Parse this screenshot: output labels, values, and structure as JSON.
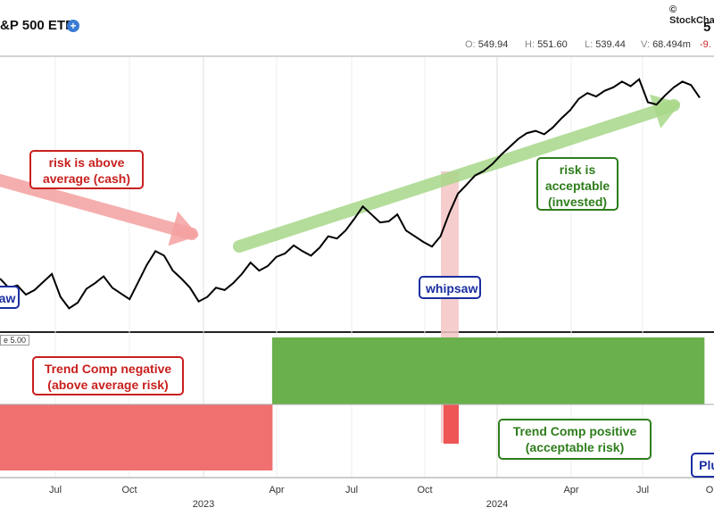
{
  "header": {
    "title": "&P 500 ETF",
    "brand": "© StockCharts.com",
    "price": "5",
    "ohlc": [
      {
        "k": "O:",
        "v": "549.94"
      },
      {
        "k": "H:",
        "v": "551.60"
      },
      {
        "k": "L:",
        "v": "539.44"
      },
      {
        "k": "V:",
        "v": "68.494m"
      }
    ],
    "change": "-9.",
    "colors": {
      "plus_badge": "#3a7bd5"
    }
  },
  "panel_tag": "e 5.00",
  "callouts": {
    "risk_above": "risk is above average (cash)",
    "risk_acceptable": "risk is acceptable (invested)",
    "whipsaw_main": "whipsaw",
    "whipsaw_left": "aw",
    "trend_negative": "Trend Comp negative (above average risk)",
    "trend_positive": "Trend Comp positive (acceptable risk)",
    "plus_tag": "Plu"
  },
  "x_axis": {
    "months": [
      "Jul",
      "Oct",
      "Apr",
      "Jul",
      "Oct",
      "Apr",
      "Jul",
      "O"
    ],
    "years": [
      "2023",
      "2024"
    ]
  },
  "chart_data": {
    "type": "line",
    "series": [
      {
        "values": [
          388,
          380,
          382,
          374,
          378,
          385,
          392,
          372,
          362,
          367,
          379,
          384,
          390,
          380,
          375,
          370,
          385,
          400,
          412,
          408,
          395,
          388,
          380,
          368,
          372,
          380,
          378,
          384,
          392,
          402,
          395,
          399,
          407,
          410,
          417,
          412,
          408,
          415,
          425,
          423,
          430,
          440,
          451,
          444,
          437,
          438,
          444,
          430,
          425,
          420,
          416,
          425,
          445,
          462,
          470,
          478,
          482,
          488,
          496,
          503,
          510,
          515,
          517,
          514,
          520,
          528,
          535,
          545,
          550,
          547,
          552,
          555,
          560,
          556,
          562,
          542,
          540,
          548,
          555,
          560,
          557,
          546
        ]
      }
    ],
    "trend_comp": [
      -1,
      -1,
      -1,
      -1,
      -1,
      -1,
      -1,
      -1,
      -1,
      -1,
      -1,
      -1,
      -1,
      -1,
      -1,
      -1,
      -1,
      -1,
      -1,
      -1,
      -1,
      -1,
      -1,
      -1,
      -1,
      -1,
      -1,
      -1,
      -1,
      -1,
      -1,
      -1,
      1,
      1,
      1,
      1,
      1,
      1,
      1,
      1,
      1,
      1,
      1,
      1,
      1,
      1,
      1,
      1,
      1,
      1,
      1,
      1,
      1,
      1,
      1,
      1,
      1,
      1,
      1,
      1,
      1,
      1,
      1,
      1,
      1,
      1,
      1,
      1,
      1,
      1,
      1,
      1,
      1,
      1,
      1,
      1,
      1,
      1,
      1,
      1,
      1,
      1
    ],
    "trend_comp_whipsaw": -1,
    "colors": {
      "price": "#000000",
      "positive": "#6ab04c",
      "negative": "#f07070",
      "arrow_red": "#f4a0a0",
      "arrow_green": "#a8d88a",
      "whipsaw_band": "#f4c4c4"
    }
  }
}
